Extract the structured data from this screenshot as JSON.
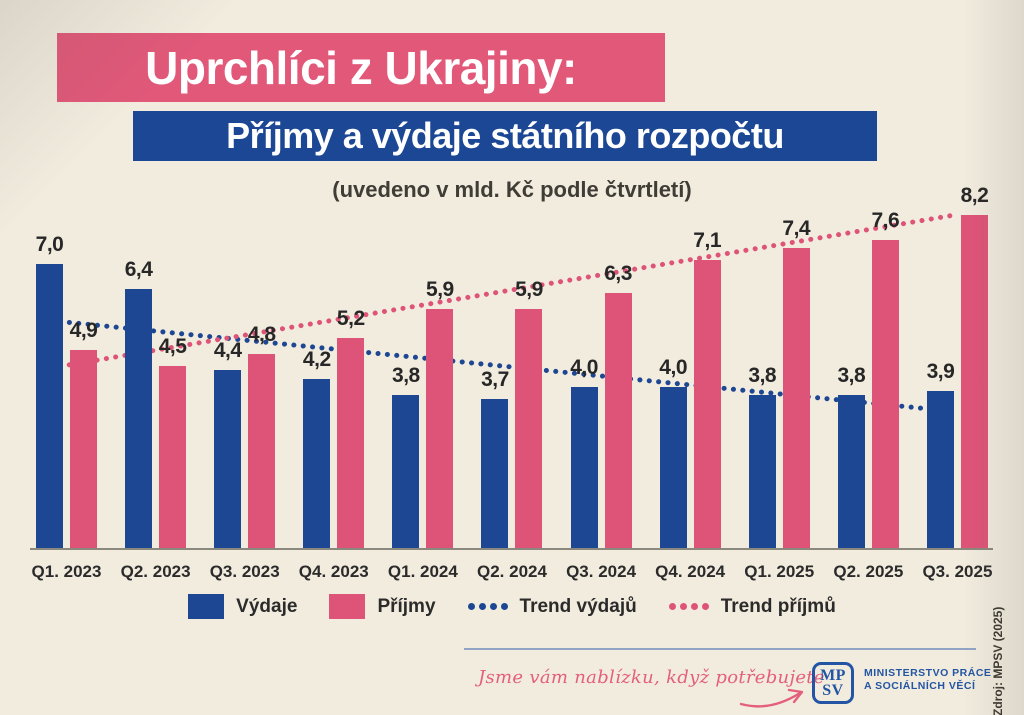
{
  "header": {
    "title_line1": "Uprchlíci z Ukrajiny:",
    "title_line2": "Příjmy a výdaje státního rozpočtu",
    "subtitle": "(uvedeno v mld. Kč podle čtvrtletí)"
  },
  "chart_data": {
    "type": "bar",
    "title": "Uprchlíci z Ukrajiny: Příjmy a výdaje státního rozpočtu",
    "subtitle": "(uvedeno v mld. Kč podle čtvrtletí)",
    "unit": "mld. Kč",
    "categories": [
      "Q1. 2023",
      "Q2. 2023",
      "Q3. 2023",
      "Q4. 2023",
      "Q1. 2024",
      "Q2. 2024",
      "Q3. 2024",
      "Q4. 2024",
      "Q1. 2025",
      "Q2. 2025",
      "Q3. 2025"
    ],
    "series": [
      {
        "name": "Výdaje",
        "color": "#1e4793",
        "values": [
          7.0,
          6.4,
          4.4,
          4.2,
          3.8,
          3.7,
          4.0,
          4.0,
          3.8,
          3.8,
          3.9
        ]
      },
      {
        "name": "Příjmy",
        "color": "#de5478",
        "values": [
          4.9,
          4.5,
          4.8,
          5.2,
          5.9,
          5.9,
          6.3,
          7.1,
          7.4,
          7.6,
          8.2
        ]
      }
    ],
    "trendlines": [
      {
        "name": "Trend výdajů",
        "color": "#1e4793",
        "start_value": 5.6,
        "end_value": 3.4
      },
      {
        "name": "Trend příjmů",
        "color": "#de5478",
        "start_value": 4.5,
        "end_value": 8.2
      }
    ],
    "value_labels": true,
    "decimal_separator": ",",
    "ylim": [
      0,
      8.6
    ],
    "grid": false,
    "legend_position": "bottom"
  },
  "legend": {
    "items": [
      {
        "label": "Výdaje",
        "swatch": "square",
        "color": "#1e4793"
      },
      {
        "label": "Příjmy",
        "swatch": "square",
        "color": "#de5478"
      },
      {
        "label": "Trend výdajů",
        "swatch": "dots",
        "color": "#1e4793"
      },
      {
        "label": "Trend příjmů",
        "swatch": "dots",
        "color": "#de5478"
      }
    ]
  },
  "footer": {
    "tagline": "Jsme vám nablízku, když potřebujete",
    "logo_line1": "MP",
    "logo_line2": "SV",
    "ministry_line1": "MINISTERSTVO PRÁCE",
    "ministry_line2": "A SOCIÁLNÍCH VĚCÍ",
    "source": "Zdroj: MPSV (2025)"
  },
  "colors": {
    "background": "#f2ecdf",
    "title1_bg": "#e15879",
    "title2_bg": "#1c4795",
    "expenses_blue": "#1e4793",
    "income_pink": "#de5478",
    "axis": "#8b887d",
    "divider": "#93a3c4",
    "tagline_pink": "#e4607a",
    "logo_blue": "#2355a4",
    "text_dark": "#2b2b2b"
  }
}
